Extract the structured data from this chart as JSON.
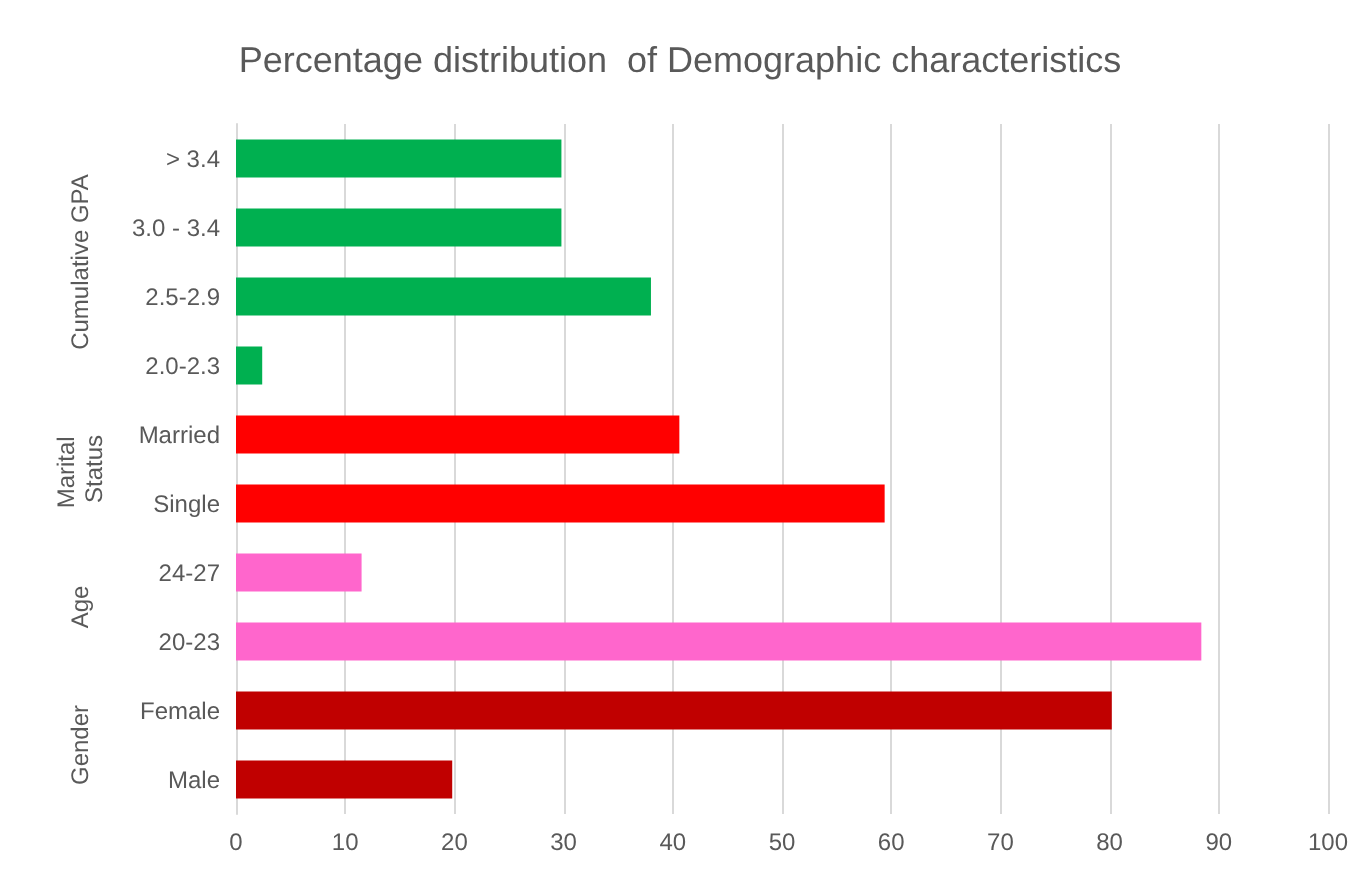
{
  "chart_data": {
    "type": "bar",
    "orientation": "horizontal",
    "title": "Percentage distribution  of Demographic characteristics",
    "categories": [
      "> 3.4",
      "3.0 - 3.4",
      "2.5-2.9",
      "2.0-2.3",
      "Married",
      "Single",
      "24-27",
      "20-23",
      "Female",
      "Male"
    ],
    "values": [
      29.8,
      29.8,
      38.0,
      2.4,
      40.6,
      59.4,
      11.5,
      88.4,
      80.2,
      19.8
    ],
    "colors": [
      "#00b050",
      "#00b050",
      "#00b050",
      "#00b050",
      "#ff0000",
      "#ff0000",
      "#ff66cc",
      "#ff66cc",
      "#c00000",
      "#c00000"
    ],
    "annotations": [
      "Cumulative GPA",
      "Marital Status",
      "Age",
      "Gender"
    ],
    "xlim": [
      0,
      100
    ],
    "xticks": [
      0,
      10,
      20,
      30,
      40,
      50,
      60,
      70,
      80,
      90,
      100
    ],
    "grid": "x"
  }
}
